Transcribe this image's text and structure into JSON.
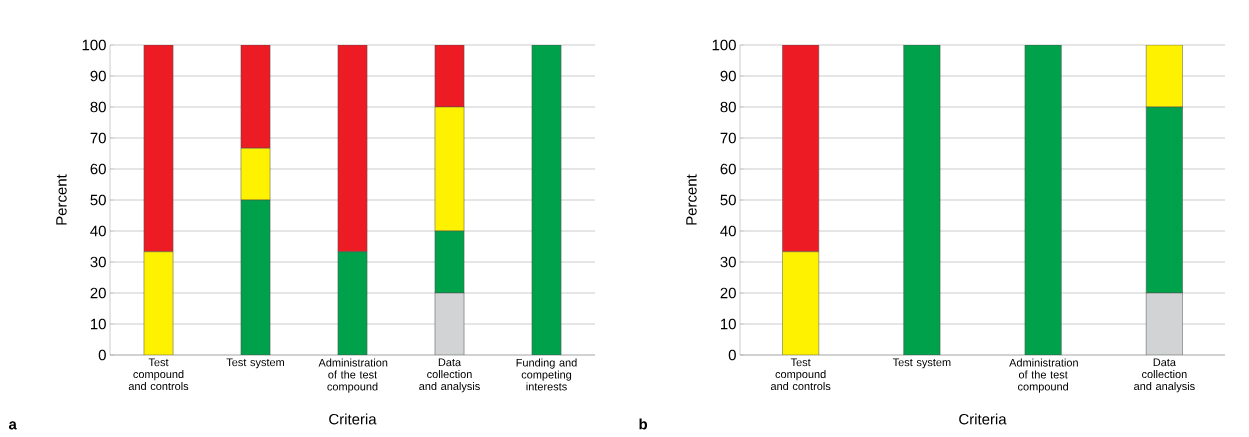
{
  "chart_data": [
    {
      "type": "bar",
      "stacked": true,
      "xlabel": "Criteria",
      "ylabel": "Percent",
      "annotations": [
        "a"
      ],
      "categories": [
        "Test compound and controls",
        "Test system",
        "Administration of the test compound",
        "Data collection and analysis",
        "Funding and competing interests"
      ],
      "series": [
        {
          "color": "#d1d3d4",
          "values": [
            0,
            0,
            0,
            20,
            0
          ]
        },
        {
          "color": "#00a14b",
          "values": [
            0,
            50,
            33.3,
            20,
            100
          ]
        },
        {
          "color": "#fff200",
          "values": [
            33.3,
            16.7,
            0,
            40,
            0
          ]
        },
        {
          "color": "#ed1c24",
          "values": [
            66.7,
            33.3,
            66.7,
            20,
            0
          ]
        }
      ],
      "ylim": [
        0,
        100
      ],
      "yticks": [
        0,
        10,
        20,
        30,
        40,
        50,
        60,
        70,
        80,
        90,
        100
      ],
      "grid": "y"
    },
    {
      "type": "bar",
      "stacked": true,
      "xlabel": "Criteria",
      "ylabel": "Percent",
      "annotations": [
        "b"
      ],
      "categories": [
        "Test compound and controls",
        "Test system",
        "Administration of the test compound",
        "Data collection and analysis"
      ],
      "series": [
        {
          "color": "#d1d3d4",
          "values": [
            0,
            0,
            0,
            20
          ]
        },
        {
          "color": "#00a14b",
          "values": [
            0,
            100,
            100,
            60
          ]
        },
        {
          "color": "#fff200",
          "values": [
            33.3,
            0,
            0,
            20
          ]
        },
        {
          "color": "#ed1c24",
          "values": [
            66.7,
            0,
            0,
            0
          ]
        }
      ],
      "ylim": [
        0,
        100
      ],
      "yticks": [
        0,
        10,
        20,
        30,
        40,
        50,
        60,
        70,
        80,
        90,
        100
      ],
      "grid": "y"
    }
  ]
}
